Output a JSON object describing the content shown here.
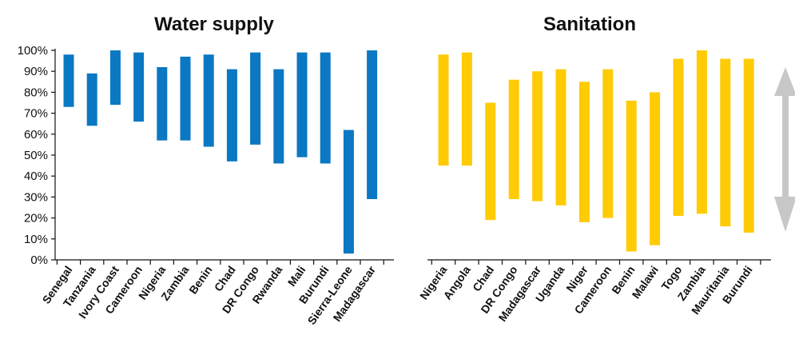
{
  "chart_data": [
    {
      "type": "bar",
      "subtype": "floating-range",
      "title": "Water supply",
      "color": "#0a78c2",
      "ylim": [
        0,
        100
      ],
      "yticks": [
        "0%",
        "10%",
        "20%",
        "30%",
        "40%",
        "50%",
        "60%",
        "70%",
        "80%",
        "90%",
        "100%"
      ],
      "categories": [
        "Senegal",
        "Tanzania",
        "Ivory Coast",
        "Cameroon",
        "Nigeria",
        "Zambia",
        "Benin",
        "Chad",
        "DR Congo",
        "Rwanda",
        "Mali",
        "Burundi",
        "Sierra-Leone",
        "Madagascar"
      ],
      "low": [
        73,
        64,
        74,
        66,
        57,
        57,
        54,
        47,
        55,
        46,
        49,
        46,
        3,
        29
      ],
      "high": [
        98,
        89,
        100,
        99,
        92,
        97,
        98,
        91,
        99,
        91,
        99,
        99,
        62,
        100
      ]
    },
    {
      "type": "bar",
      "subtype": "floating-range",
      "title": "Sanitation",
      "color": "#ffcb05",
      "ylim": [
        0,
        100
      ],
      "categories": [
        "Nigeria",
        "Angola",
        "Chad",
        "DR Congo",
        "Madagascar",
        "Uganda",
        "Niger",
        "Cameroon",
        "Benin",
        "Malawi",
        "Togo",
        "Zambia",
        "Mauritania",
        "Burundi"
      ],
      "low": [
        45,
        45,
        19,
        29,
        28,
        26,
        18,
        20,
        4,
        7,
        21,
        22,
        16,
        13
      ],
      "high": [
        98,
        99,
        75,
        86,
        90,
        91,
        85,
        91,
        76,
        80,
        96,
        100,
        96,
        96
      ]
    }
  ],
  "range_arrow": {
    "color": "#c7c7c7"
  }
}
